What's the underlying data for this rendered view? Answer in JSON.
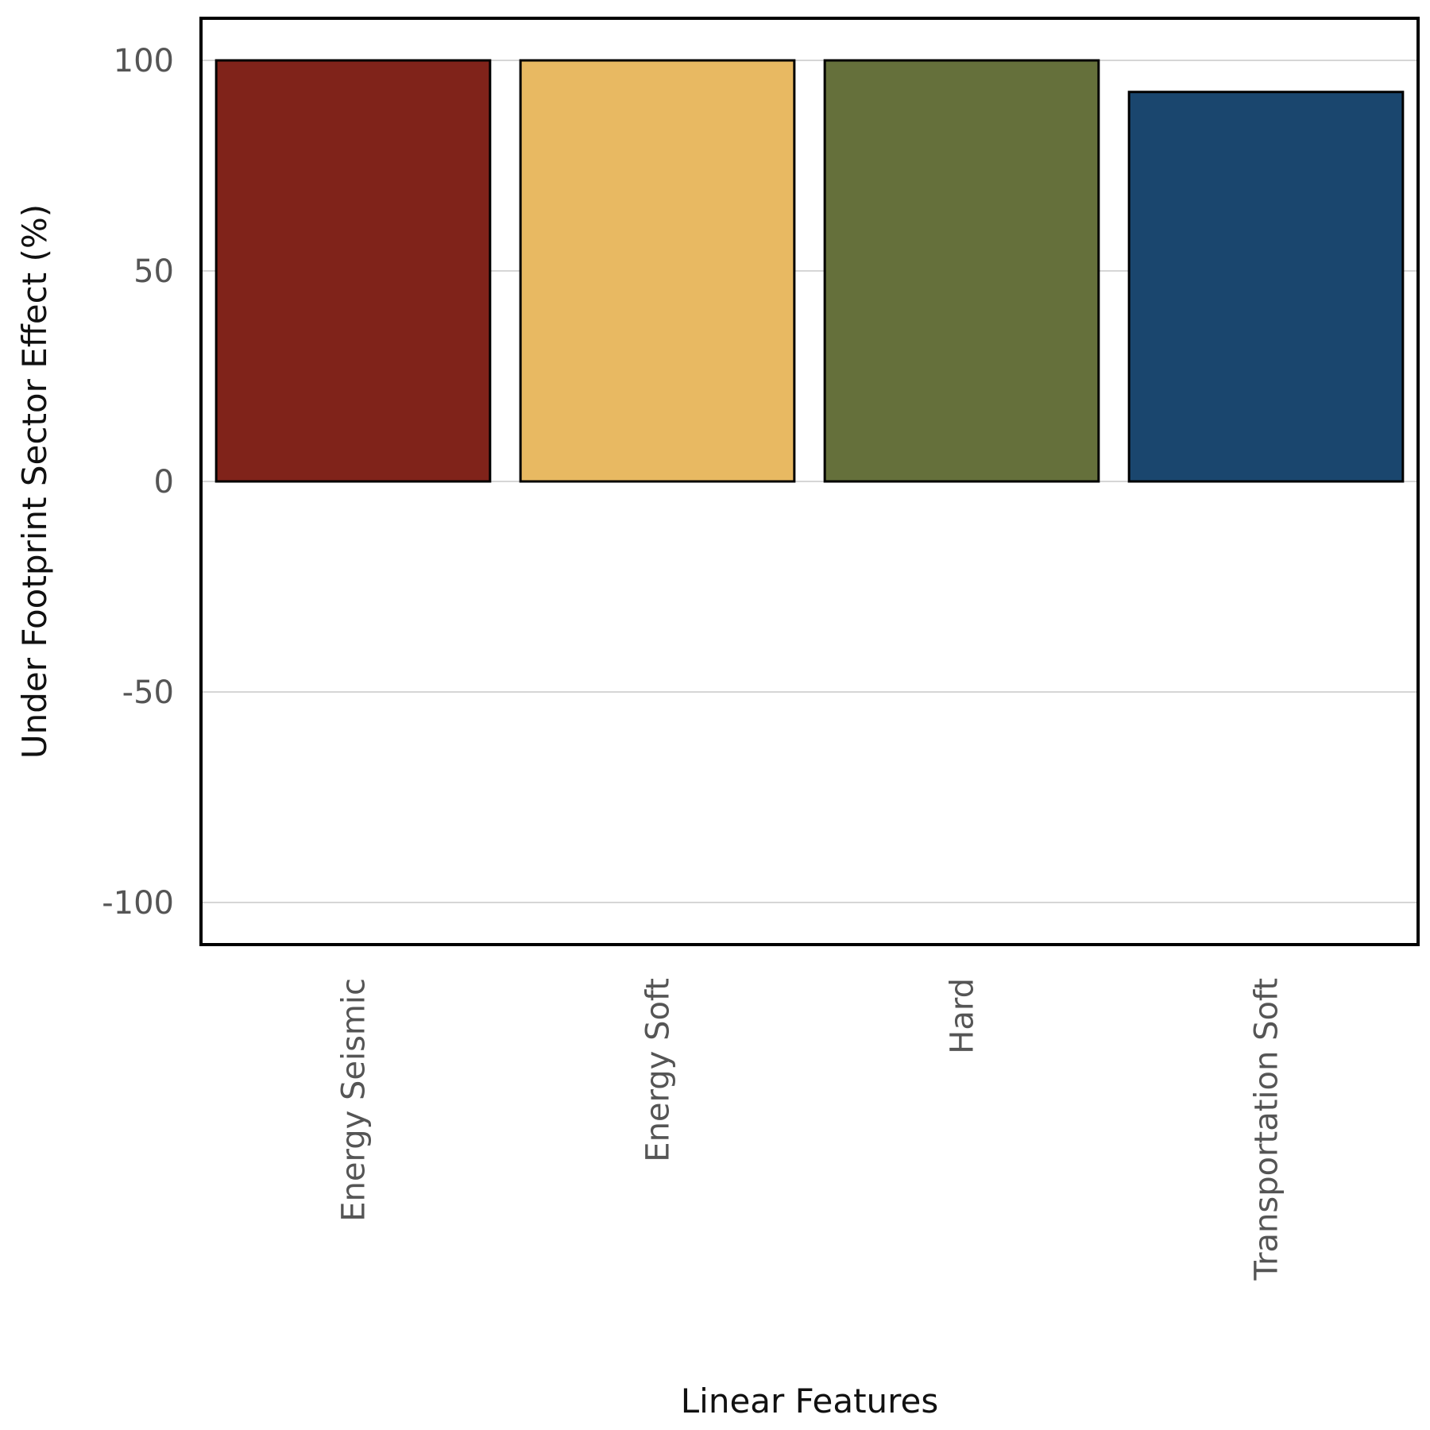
{
  "chart_data": {
    "type": "bar",
    "title": "",
    "xlabel": "Linear Features",
    "ylabel": "Under Footprint Sector Effect (%)",
    "categories": [
      "Energy Seismic",
      "Energy Soft",
      "Hard",
      "Transportation Soft"
    ],
    "values": [
      100,
      100,
      100,
      92.5
    ],
    "colors": [
      "#80231a",
      "#e8b962",
      "#65703b",
      "#1a466e"
    ],
    "ylim": [
      -110,
      110
    ],
    "yticks": [
      -100,
      -50,
      0,
      50,
      100
    ],
    "ytick_labels": [
      "-100",
      "-50",
      "0",
      "50",
      "100"
    ],
    "grid": true,
    "legend": "none"
  }
}
